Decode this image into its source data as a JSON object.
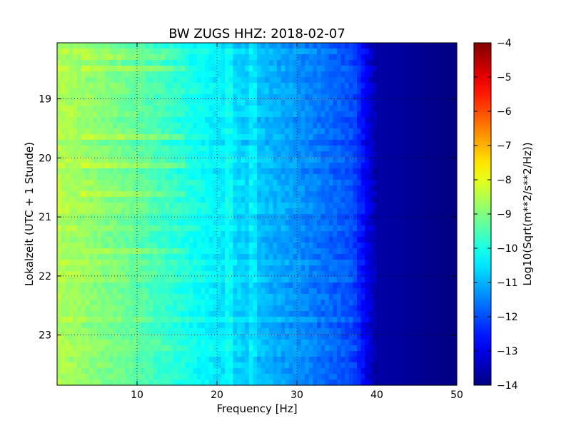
{
  "chart_data": {
    "type": "heatmap",
    "title": "BW ZUGS HHZ: 2018-02-07",
    "xlabel": "Frequency [Hz]",
    "ylabel": "Lokalzeit (UTC + 1 Stunde)",
    "xlim": [
      0,
      50
    ],
    "ylim": [
      18.05,
      23.85
    ],
    "xticks": [
      10,
      20,
      30,
      40,
      50
    ],
    "yticks": [
      19,
      20,
      21,
      22,
      23
    ],
    "y_inverted": true,
    "grid": true,
    "colormap": "jet",
    "colorbar": {
      "label": "Log10(Sqrt(m**2/s**2/Hz))",
      "range": [
        -14,
        -4
      ],
      "ticks": [
        -4,
        -5,
        -6,
        -7,
        -8,
        -9,
        -10,
        -11,
        -12,
        -13,
        -14
      ]
    },
    "spectrum_profile": [
      {
        "frequency_hz": 0,
        "value": -8.5
      },
      {
        "frequency_hz": 10,
        "value": -9.3
      },
      {
        "frequency_hz": 20,
        "value": -10.4
      },
      {
        "frequency_hz": 30,
        "value": -11.3
      },
      {
        "frequency_hz": 37,
        "value": -12.0
      },
      {
        "frequency_hz": 40,
        "value": -13.6
      },
      {
        "frequency_hz": 50,
        "value": -14.0
      }
    ],
    "bright_bands_hour": [
      18.3,
      18.5,
      19.65,
      20.1,
      20.6,
      21.6
    ]
  },
  "colors": {
    "jet": [
      "#00007f",
      "#0000ff",
      "#007fff",
      "#00ffff",
      "#7fff7f",
      "#ffff00",
      "#ff7f00",
      "#ff0000",
      "#7f0000"
    ]
  }
}
